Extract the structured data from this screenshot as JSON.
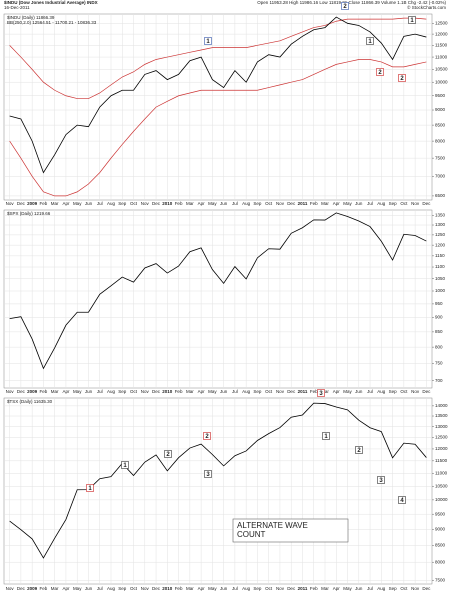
{
  "header": {
    "symbol": "$INDU (Dow Jones Industrial Average) INDX",
    "date": "16-Dec-2011",
    "quote": "Open 11953.28 High 11986.16 Low 11819.21 Close 11866.39 Volume 1.1B Chg -2.42 (-0.02%)",
    "credit": "© StockCharts.com"
  },
  "chart_data": [
    {
      "type": "line",
      "log_scale": true,
      "grid": true,
      "categories": [
        "Nov",
        "Dec",
        "2009",
        "Feb",
        "Mar",
        "Apr",
        "May",
        "Jun",
        "Jul",
        "Aug",
        "Sep",
        "Oct",
        "Nov",
        "Dec",
        "2010",
        "Feb",
        "Mar",
        "Apr",
        "May",
        "Jun",
        "Jul",
        "Aug",
        "Sep",
        "Oct",
        "Nov",
        "Dec",
        "2011",
        "Feb",
        "Mar",
        "Apr",
        "May",
        "Jun",
        "Jul",
        "Aug",
        "Sep",
        "Oct",
        "Nov",
        "Dec"
      ],
      "series": [
        {
          "name": "$INDU (Daily) 11866.39",
          "color": "#000000",
          "values": [
            8800,
            8700,
            8000,
            7100,
            7600,
            8200,
            8500,
            8450,
            9100,
            9500,
            9700,
            9700,
            10300,
            10450,
            10100,
            10300,
            10850,
            11000,
            10100,
            9800,
            10450,
            10000,
            10800,
            11100,
            11000,
            11550,
            11900,
            12200,
            12300,
            12800,
            12500,
            12400,
            12100,
            11600,
            10900,
            11900,
            12000,
            11866
          ]
        }
      ],
      "bands": {
        "name": "BB(250,2.0) 12564.51 - 11700.21 - 10836.33",
        "color": "#cc3333",
        "upper": [
          11500,
          11000,
          10500,
          10000,
          9700,
          9500,
          9400,
          9400,
          9600,
          9900,
          10200,
          10400,
          10700,
          10900,
          11000,
          11100,
          11200,
          11300,
          11400,
          11400,
          11400,
          11400,
          11500,
          11600,
          11700,
          11900,
          12100,
          12300,
          12400,
          12600,
          12700,
          12700,
          12700,
          12700,
          12700,
          12750,
          12750,
          12700
        ],
        "lower": [
          8000,
          7500,
          7000,
          6600,
          6500,
          6500,
          6600,
          6800,
          7100,
          7500,
          7900,
          8300,
          8700,
          9100,
          9300,
          9500,
          9600,
          9700,
          9700,
          9700,
          9700,
          9700,
          9700,
          9800,
          9900,
          10000,
          10100,
          10300,
          10500,
          10700,
          10800,
          10900,
          10900,
          10800,
          10600,
          10600,
          10700,
          10800
        ]
      },
      "ylim": [
        6400,
        12950
      ],
      "yticks": [
        6500,
        7000,
        7500,
        8000,
        8500,
        9000,
        9500,
        10000,
        10500,
        11000,
        11500,
        12000,
        12500
      ],
      "wave_labels": [
        "1",
        "2",
        "1",
        "2",
        "1",
        "2"
      ]
    },
    {
      "type": "line",
      "log_scale": true,
      "grid": true,
      "categories": [
        "Nov",
        "Dec",
        "2009",
        "Feb",
        "Mar",
        "Apr",
        "May",
        "Jun",
        "Jul",
        "Aug",
        "Sep",
        "Oct",
        "Nov",
        "Dec",
        "2010",
        "Feb",
        "Mar",
        "Apr",
        "May",
        "Jun",
        "Jul",
        "Aug",
        "Sep",
        "Oct",
        "Nov",
        "Dec",
        "2011",
        "Feb",
        "Mar",
        "Apr",
        "May",
        "Jun",
        "Jul",
        "Aug",
        "Sep",
        "Oct",
        "Nov",
        "Dec"
      ],
      "series": [
        {
          "name": "$SPX (Daily) 1219.66",
          "color": "#000000",
          "values": [
            896,
            903,
            826,
            735,
            798,
            873,
            919,
            919,
            987,
            1021,
            1057,
            1036,
            1096,
            1115,
            1074,
            1104,
            1169,
            1187,
            1089,
            1031,
            1102,
            1049,
            1141,
            1183,
            1181,
            1258,
            1286,
            1327,
            1326,
            1364,
            1345,
            1321,
            1292,
            1219,
            1131,
            1253,
            1247,
            1219.66
          ]
        }
      ],
      "ylim": [
        680,
        1380
      ],
      "yticks": [
        700,
        750,
        800,
        850,
        900,
        950,
        1000,
        1050,
        1100,
        1150,
        1200,
        1250,
        1300,
        1350
      ]
    },
    {
      "type": "line",
      "log_scale": true,
      "grid": true,
      "categories": [
        "Nov",
        "Dec",
        "2009",
        "Feb",
        "Mar",
        "Apr",
        "May",
        "Jun",
        "Jul",
        "Aug",
        "Sep",
        "Oct",
        "Nov",
        "Dec",
        "2010",
        "Feb",
        "Mar",
        "Apr",
        "May",
        "Jun",
        "Jul",
        "Aug",
        "Sep",
        "Oct",
        "Nov",
        "Dec",
        "2011",
        "Feb",
        "Mar",
        "Apr",
        "May",
        "Jun",
        "Jul",
        "Aug",
        "Sep",
        "Oct",
        "Nov",
        "Dec"
      ],
      "series": [
        {
          "name": "$TSX (Daily) 11635.30",
          "color": "#000000",
          "values": [
            9271,
            8988,
            8695,
            8123,
            8720,
            9325,
            10370,
            10375,
            10787,
            10868,
            11395,
            10911,
            11447,
            11746,
            11094,
            11630,
            12038,
            12211,
            11763,
            11294,
            11713,
            11914,
            12369,
            12676,
            12953,
            13443,
            13552,
            14137,
            14116,
            13945,
            13803,
            13301,
            12946,
            12769,
            11624,
            12252,
            12204,
            11635.3
          ]
        }
      ],
      "ylim": [
        7400,
        14400
      ],
      "yticks": [
        7500,
        8000,
        8500,
        9000,
        9500,
        10000,
        10500,
        11000,
        11500,
        12000,
        12500,
        13000,
        13500,
        14000
      ],
      "wave_labels": [
        "1",
        "2",
        "1",
        "2",
        "3",
        "3",
        "1",
        "2",
        "3",
        "4"
      ],
      "note": "ALTERNATE WAVE COUNT"
    }
  ]
}
